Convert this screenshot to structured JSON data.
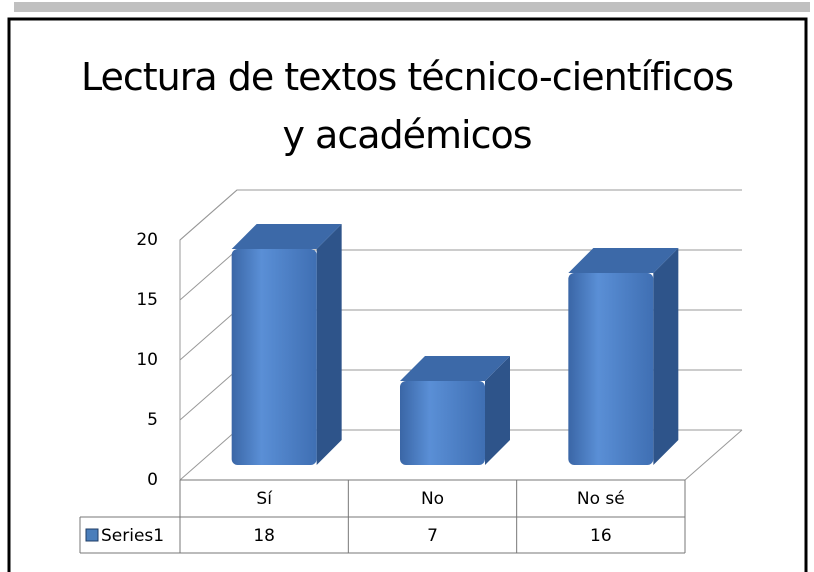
{
  "chart_data": {
    "type": "bar3d",
    "title": "Lectura de textos técnico-científicos y académicos",
    "categories": [
      "Sí",
      "No",
      "No sé"
    ],
    "series": [
      {
        "name": "Series1",
        "color": "#4a7ebb",
        "values": [
          18,
          7,
          16
        ]
      }
    ],
    "ylim": [
      0,
      20
    ],
    "yticks": [
      0,
      5,
      10,
      15,
      20
    ],
    "grid": true,
    "data_table": true
  }
}
